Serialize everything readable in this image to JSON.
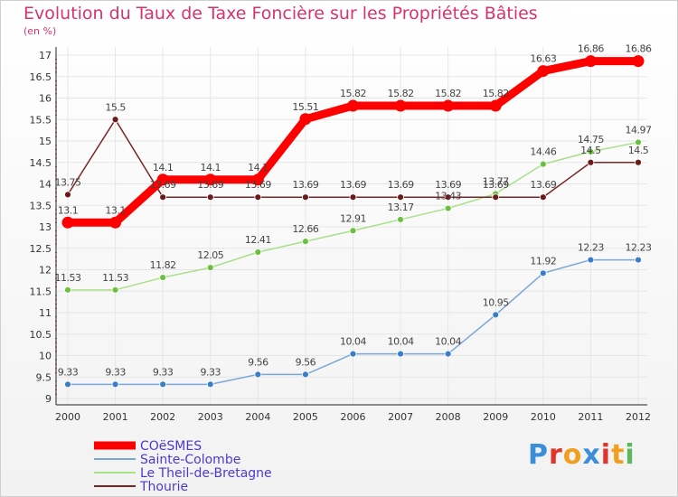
{
  "header": {
    "title": "Evolution du Taux de Taxe Foncière sur les Propriétés Bâties",
    "unit": "(en %)"
  },
  "logo": {
    "letters": [
      "P",
      "r",
      "o",
      "x",
      "i",
      "t",
      "i"
    ],
    "colors": [
      "#3a8fd8",
      "#e0352b",
      "#f0a020",
      "#3a8fd8",
      "#e0352b",
      "#f0a020",
      "#5cb85c"
    ]
  },
  "chart_data": {
    "type": "line",
    "title": "Evolution du Taux de Taxe Foncière sur les Propriétés Bâties",
    "ylabel": "(en %)",
    "ylim": [
      9,
      17
    ],
    "yticks": [
      "9",
      "9.5",
      "10",
      "10.5",
      "11",
      "11.5",
      "12",
      "12.5",
      "13",
      "13.5",
      "14",
      "14.5",
      "15",
      "15.5",
      "16",
      "16.5",
      "17"
    ],
    "categories": [
      "2000",
      "2001",
      "2002",
      "2003",
      "2004",
      "2005",
      "2006",
      "2007",
      "2008",
      "2009",
      "2010",
      "2011",
      "2012"
    ],
    "series": [
      {
        "name": "COëSMES",
        "color": "#ff0000",
        "dot": "#ff0000",
        "values": [
          13.1,
          13.1,
          14.1,
          14.1,
          14.1,
          15.51,
          15.82,
          15.82,
          15.82,
          15.82,
          16.63,
          16.86,
          16.86
        ],
        "labels": [
          "13.1",
          "13.1",
          "14.1",
          "14.1",
          "14.1",
          "15.51",
          "15.82",
          "15.82",
          "15.82",
          "15.82",
          "16.63",
          "16.86",
          "16.86"
        ]
      },
      {
        "name": "Sainte-Colombe",
        "color": "#7aa8d6",
        "dot": "#3a7dc8",
        "values": [
          9.33,
          9.33,
          9.33,
          9.33,
          9.56,
          9.56,
          10.04,
          10.04,
          10.04,
          10.95,
          11.92,
          12.23,
          12.23
        ],
        "labels": [
          "9.33",
          "9.33",
          "9.33",
          "9.33",
          "9.56",
          "9.56",
          "10.04",
          "10.04",
          "10.04",
          "10.95",
          "11.92",
          "12.23",
          "12.23"
        ]
      },
      {
        "name": "Le Theil-de-Bretagne",
        "color": "#a8e088",
        "dot": "#6cc040",
        "values": [
          11.53,
          11.53,
          11.82,
          12.05,
          12.41,
          12.66,
          12.91,
          13.17,
          13.43,
          13.77,
          14.46,
          14.75,
          14.97
        ],
        "labels": [
          "11.53",
          "11.53",
          "11.82",
          "12.05",
          "12.41",
          "12.66",
          "12.91",
          "13.17",
          "13.43",
          "13.77",
          "14.46",
          "14.75",
          "14.97"
        ]
      },
      {
        "name": "Thourie",
        "color": "#7a2424",
        "dot": "#6b1a1a",
        "values": [
          13.75,
          15.5,
          13.69,
          13.69,
          13.69,
          13.69,
          13.69,
          13.69,
          13.69,
          13.69,
          13.69,
          14.5,
          14.5
        ],
        "labels": [
          "13.75",
          "15.5",
          "13.69",
          "13.69",
          "13.69",
          "13.69",
          "13.69",
          "13.69",
          "13.69",
          "13.69",
          "13.69",
          "14.5",
          "14.5"
        ]
      }
    ]
  }
}
